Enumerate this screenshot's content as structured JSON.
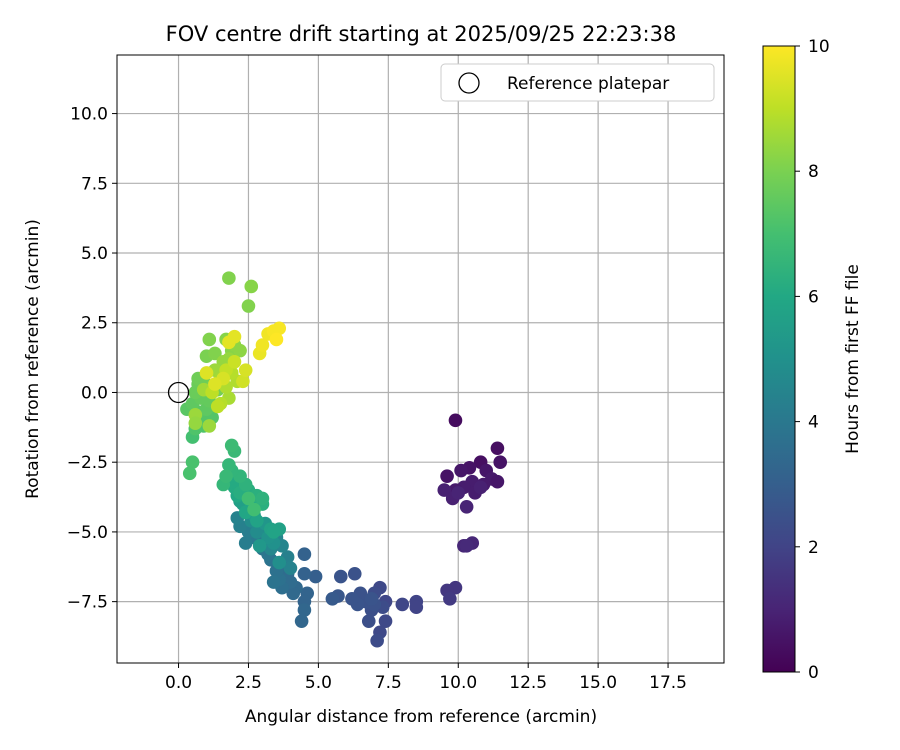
{
  "chart_data": {
    "type": "scatter",
    "title": "FOV centre drift starting at 2025/09/25 22:23:38",
    "xlabel": "Angular distance from reference (arcmin)",
    "ylabel": "Rotation from reference (arcmin)",
    "xlim": [
      -2.2,
      19.5
    ],
    "ylim": [
      -9.7,
      12.1
    ],
    "x_ticks": [
      0.0,
      2.5,
      5.0,
      7.5,
      10.0,
      12.5,
      15.0,
      17.5
    ],
    "x_tick_labels": [
      "0.0",
      "2.5",
      "5.0",
      "7.5",
      "10.0",
      "12.5",
      "15.0",
      "17.5"
    ],
    "y_ticks": [
      -7.5,
      -5.0,
      -2.5,
      0.0,
      2.5,
      5.0,
      7.5,
      10.0
    ],
    "y_tick_labels": [
      "−7.5",
      "−5.0",
      "−2.5",
      "0.0",
      "2.5",
      "5.0",
      "7.5",
      "10.0"
    ],
    "grid": true,
    "legend": {
      "position": "top-right",
      "entries": [
        "Reference platepar"
      ]
    },
    "reference_point": {
      "x": 0.0,
      "y": 0.0,
      "label": "Reference platepar"
    },
    "colorbar": {
      "label": "Hours from first FF file",
      "min": 0,
      "max": 10,
      "ticks": [
        0,
        2,
        4,
        6,
        8,
        10
      ],
      "tick_labels": [
        "0",
        "2",
        "4",
        "6",
        "8",
        "10"
      ],
      "colormap": "viridis"
    },
    "points": [
      {
        "x": 9.9,
        "y": -1.0,
        "h": 0.3
      },
      {
        "x": 11.4,
        "y": -2.0,
        "h": 0.4
      },
      {
        "x": 11.5,
        "y": -2.5,
        "h": 0.5
      },
      {
        "x": 10.8,
        "y": -2.5,
        "h": 0.4
      },
      {
        "x": 10.4,
        "y": -2.7,
        "h": 0.5
      },
      {
        "x": 10.1,
        "y": -2.8,
        "h": 0.6
      },
      {
        "x": 9.6,
        "y": -3.0,
        "h": 0.5
      },
      {
        "x": 11.0,
        "y": -2.8,
        "h": 0.6
      },
      {
        "x": 11.2,
        "y": -3.1,
        "h": 0.7
      },
      {
        "x": 11.4,
        "y": -3.2,
        "h": 0.6
      },
      {
        "x": 10.9,
        "y": -3.3,
        "h": 0.7
      },
      {
        "x": 10.5,
        "y": -3.2,
        "h": 0.8
      },
      {
        "x": 10.2,
        "y": -3.4,
        "h": 0.8
      },
      {
        "x": 9.9,
        "y": -3.5,
        "h": 0.7
      },
      {
        "x": 9.5,
        "y": -3.5,
        "h": 0.9
      },
      {
        "x": 9.8,
        "y": -3.8,
        "h": 0.9
      },
      {
        "x": 10.6,
        "y": -3.6,
        "h": 0.8
      },
      {
        "x": 10.8,
        "y": -3.4,
        "h": 0.9
      },
      {
        "x": 10.3,
        "y": -4.1,
        "h": 1.0
      },
      {
        "x": 10.0,
        "y": -3.6,
        "h": 1.0
      },
      {
        "x": 10.5,
        "y": -5.4,
        "h": 1.1
      },
      {
        "x": 10.2,
        "y": -5.5,
        "h": 1.1
      },
      {
        "x": 10.3,
        "y": -5.5,
        "h": 1.2
      },
      {
        "x": 9.9,
        "y": -7.0,
        "h": 1.6
      },
      {
        "x": 9.6,
        "y": -7.1,
        "h": 1.6
      },
      {
        "x": 9.7,
        "y": -7.4,
        "h": 1.7
      },
      {
        "x": 8.5,
        "y": -7.5,
        "h": 2.0
      },
      {
        "x": 8.5,
        "y": -7.7,
        "h": 2.0
      },
      {
        "x": 8.0,
        "y": -7.6,
        "h": 2.1
      },
      {
        "x": 7.4,
        "y": -7.5,
        "h": 2.1
      },
      {
        "x": 7.4,
        "y": -8.2,
        "h": 2.2
      },
      {
        "x": 7.2,
        "y": -8.6,
        "h": 2.2
      },
      {
        "x": 7.1,
        "y": -8.9,
        "h": 2.3
      },
      {
        "x": 7.2,
        "y": -7.0,
        "h": 2.2
      },
      {
        "x": 7.0,
        "y": -7.2,
        "h": 2.3
      },
      {
        "x": 7.3,
        "y": -7.7,
        "h": 2.3
      },
      {
        "x": 6.8,
        "y": -8.2,
        "h": 2.4
      },
      {
        "x": 6.9,
        "y": -7.8,
        "h": 2.4
      },
      {
        "x": 6.7,
        "y": -7.5,
        "h": 2.5
      },
      {
        "x": 6.5,
        "y": -7.2,
        "h": 2.5
      },
      {
        "x": 6.4,
        "y": -7.6,
        "h": 2.6
      },
      {
        "x": 6.2,
        "y": -7.4,
        "h": 2.6
      },
      {
        "x": 6.3,
        "y": -6.5,
        "h": 2.5
      },
      {
        "x": 5.8,
        "y": -6.6,
        "h": 2.6
      },
      {
        "x": 5.7,
        "y": -7.3,
        "h": 2.7
      },
      {
        "x": 5.5,
        "y": -7.4,
        "h": 2.8
      },
      {
        "x": 7.0,
        "y": -7.6,
        "h": 2.5
      },
      {
        "x": 6.9,
        "y": -7.4,
        "h": 2.6
      },
      {
        "x": 4.9,
        "y": -6.6,
        "h": 3.0
      },
      {
        "x": 4.5,
        "y": -5.8,
        "h": 3.1
      },
      {
        "x": 4.5,
        "y": -6.5,
        "h": 3.1
      },
      {
        "x": 4.6,
        "y": -7.2,
        "h": 3.2
      },
      {
        "x": 4.5,
        "y": -7.5,
        "h": 3.2
      },
      {
        "x": 4.5,
        "y": -7.8,
        "h": 3.3
      },
      {
        "x": 4.4,
        "y": -8.2,
        "h": 3.3
      },
      {
        "x": 4.2,
        "y": -7.0,
        "h": 3.4
      },
      {
        "x": 4.1,
        "y": -7.2,
        "h": 3.4
      },
      {
        "x": 4.0,
        "y": -6.8,
        "h": 3.5
      },
      {
        "x": 3.9,
        "y": -6.5,
        "h": 3.5
      },
      {
        "x": 3.8,
        "y": -6.2,
        "h": 3.6
      },
      {
        "x": 3.7,
        "y": -7.0,
        "h": 3.6
      },
      {
        "x": 3.6,
        "y": -6.7,
        "h": 3.7
      },
      {
        "x": 3.5,
        "y": -6.4,
        "h": 3.7
      },
      {
        "x": 3.4,
        "y": -6.8,
        "h": 3.8
      },
      {
        "x": 3.3,
        "y": -6.0,
        "h": 3.8
      },
      {
        "x": 3.2,
        "y": -5.8,
        "h": 3.9
      },
      {
        "x": 3.0,
        "y": -5.6,
        "h": 3.9
      },
      {
        "x": 2.9,
        "y": -5.3,
        "h": 4.0
      },
      {
        "x": 2.7,
        "y": -5.2,
        "h": 4.1
      },
      {
        "x": 2.5,
        "y": -5.0,
        "h": 4.2
      },
      {
        "x": 2.4,
        "y": -5.4,
        "h": 4.2
      },
      {
        "x": 2.2,
        "y": -4.8,
        "h": 4.3
      },
      {
        "x": 2.1,
        "y": -4.5,
        "h": 4.4
      },
      {
        "x": 3.9,
        "y": -5.9,
        "h": 4.3
      },
      {
        "x": 4.0,
        "y": -6.3,
        "h": 4.4
      },
      {
        "x": 3.7,
        "y": -5.5,
        "h": 4.5
      },
      {
        "x": 3.5,
        "y": -5.2,
        "h": 4.5
      },
      {
        "x": 3.3,
        "y": -5.6,
        "h": 4.6
      },
      {
        "x": 3.0,
        "y": -4.8,
        "h": 4.7
      },
      {
        "x": 2.8,
        "y": -5.0,
        "h": 4.8
      },
      {
        "x": 2.6,
        "y": -4.6,
        "h": 4.8
      },
      {
        "x": 3.6,
        "y": -6.1,
        "h": 4.9
      },
      {
        "x": 3.4,
        "y": -5.4,
        "h": 5.0
      },
      {
        "x": 3.2,
        "y": -5.2,
        "h": 5.1
      },
      {
        "x": 3.1,
        "y": -4.7,
        "h": 5.2
      },
      {
        "x": 2.9,
        "y": -5.5,
        "h": 5.3
      },
      {
        "x": 2.7,
        "y": -4.4,
        "h": 5.4
      },
      {
        "x": 2.5,
        "y": -4.2,
        "h": 5.4
      },
      {
        "x": 2.3,
        "y": -4.0,
        "h": 5.5
      },
      {
        "x": 2.2,
        "y": -3.9,
        "h": 5.6
      },
      {
        "x": 3.3,
        "y": -4.9,
        "h": 5.7
      },
      {
        "x": 3.6,
        "y": -4.9,
        "h": 5.7
      },
      {
        "x": 3.4,
        "y": -5.0,
        "h": 5.8
      },
      {
        "x": 2.8,
        "y": -4.6,
        "h": 5.8
      },
      {
        "x": 2.4,
        "y": -4.3,
        "h": 5.9
      },
      {
        "x": 2.6,
        "y": -4.0,
        "h": 5.9
      },
      {
        "x": 2.1,
        "y": -3.7,
        "h": 6.0
      },
      {
        "x": 2.0,
        "y": -3.4,
        "h": 6.1
      },
      {
        "x": 1.9,
        "y": -3.2,
        "h": 6.1
      },
      {
        "x": 2.2,
        "y": -3.6,
        "h": 6.2
      },
      {
        "x": 2.5,
        "y": -3.5,
        "h": 6.2
      },
      {
        "x": 2.8,
        "y": -3.7,
        "h": 6.3
      },
      {
        "x": 3.0,
        "y": -4.0,
        "h": 6.3
      },
      {
        "x": 3.0,
        "y": -3.8,
        "h": 6.4
      },
      {
        "x": 2.4,
        "y": -3.3,
        "h": 6.4
      },
      {
        "x": 2.2,
        "y": -3.0,
        "h": 6.5
      },
      {
        "x": 1.9,
        "y": -2.8,
        "h": 6.5
      },
      {
        "x": 1.8,
        "y": -2.6,
        "h": 6.6
      },
      {
        "x": 1.6,
        "y": -3.3,
        "h": 6.6
      },
      {
        "x": 1.7,
        "y": -3.0,
        "h": 6.7
      },
      {
        "x": 2.0,
        "y": -2.1,
        "h": 6.7
      },
      {
        "x": 1.9,
        "y": -1.9,
        "h": 6.8
      },
      {
        "x": 2.7,
        "y": -4.2,
        "h": 6.9
      },
      {
        "x": 2.5,
        "y": -3.8,
        "h": 6.9
      },
      {
        "x": 0.5,
        "y": -1.6,
        "h": 7.0
      },
      {
        "x": 0.5,
        "y": -2.5,
        "h": 7.1
      },
      {
        "x": 0.4,
        "y": -2.9,
        "h": 7.1
      },
      {
        "x": 0.6,
        "y": -1.3,
        "h": 7.2
      },
      {
        "x": 0.9,
        "y": -1.2,
        "h": 7.2
      },
      {
        "x": 0.8,
        "y": -0.9,
        "h": 7.3
      },
      {
        "x": 1.2,
        "y": -0.9,
        "h": 7.3
      },
      {
        "x": 0.7,
        "y": -0.7,
        "h": 7.4
      },
      {
        "x": 0.3,
        "y": -0.6,
        "h": 7.4
      },
      {
        "x": 0.5,
        "y": -0.4,
        "h": 7.5
      },
      {
        "x": 1.0,
        "y": -0.6,
        "h": 7.5
      },
      {
        "x": 1.1,
        "y": -0.3,
        "h": 7.6
      },
      {
        "x": 0.8,
        "y": -0.2,
        "h": 7.6
      },
      {
        "x": 0.6,
        "y": 0.0,
        "h": 7.7
      },
      {
        "x": 0.7,
        "y": 0.3,
        "h": 7.7
      },
      {
        "x": 0.9,
        "y": 0.4,
        "h": 7.8
      },
      {
        "x": 0.7,
        "y": 0.5,
        "h": 7.8
      },
      {
        "x": 1.2,
        "y": 0.2,
        "h": 7.9
      },
      {
        "x": 1.4,
        "y": 0.1,
        "h": 7.9
      },
      {
        "x": 1.6,
        "y": 0.3,
        "h": 8.0
      },
      {
        "x": 1.0,
        "y": 1.3,
        "h": 8.0
      },
      {
        "x": 1.3,
        "y": 1.4,
        "h": 8.1
      },
      {
        "x": 1.1,
        "y": 1.9,
        "h": 8.1
      },
      {
        "x": 1.7,
        "y": 1.9,
        "h": 8.2
      },
      {
        "x": 1.9,
        "y": 1.5,
        "h": 8.2
      },
      {
        "x": 2.0,
        "y": 1.7,
        "h": 8.3
      },
      {
        "x": 2.2,
        "y": 1.5,
        "h": 8.3
      },
      {
        "x": 2.5,
        "y": 3.1,
        "h": 8.1
      },
      {
        "x": 2.6,
        "y": 3.8,
        "h": 8.2
      },
      {
        "x": 1.8,
        "y": 4.1,
        "h": 8.1
      },
      {
        "x": 1.6,
        "y": 1.1,
        "h": 8.4
      },
      {
        "x": 1.8,
        "y": 1.2,
        "h": 8.4
      },
      {
        "x": 1.3,
        "y": 0.8,
        "h": 8.5
      },
      {
        "x": 1.5,
        "y": 0.5,
        "h": 8.6
      },
      {
        "x": 0.9,
        "y": 0.1,
        "h": 8.6
      },
      {
        "x": 0.6,
        "y": -0.8,
        "h": 8.5
      },
      {
        "x": 0.6,
        "y": -1.1,
        "h": 8.4
      },
      {
        "x": 1.1,
        "y": -1.2,
        "h": 8.5
      },
      {
        "x": 1.8,
        "y": -0.2,
        "h": 8.7
      },
      {
        "x": 1.7,
        "y": 0.2,
        "h": 8.8
      },
      {
        "x": 2.1,
        "y": 0.4,
        "h": 8.8
      },
      {
        "x": 1.9,
        "y": 0.7,
        "h": 8.9
      },
      {
        "x": 1.5,
        "y": -0.4,
        "h": 8.9
      },
      {
        "x": 1.4,
        "y": -0.5,
        "h": 9.0
      },
      {
        "x": 1.2,
        "y": 0.0,
        "h": 9.0
      },
      {
        "x": 1.7,
        "y": 0.8,
        "h": 9.1
      },
      {
        "x": 2.0,
        "y": 1.1,
        "h": 9.2
      },
      {
        "x": 2.3,
        "y": 0.4,
        "h": 9.3
      },
      {
        "x": 2.4,
        "y": 0.8,
        "h": 9.4
      },
      {
        "x": 1.6,
        "y": 0.5,
        "h": 9.4
      },
      {
        "x": 1.3,
        "y": 0.3,
        "h": 9.5
      },
      {
        "x": 1.0,
        "y": 0.7,
        "h": 9.5
      },
      {
        "x": 2.0,
        "y": 2.0,
        "h": 9.6
      },
      {
        "x": 1.8,
        "y": 1.8,
        "h": 9.6
      },
      {
        "x": 2.9,
        "y": 1.4,
        "h": 9.7
      },
      {
        "x": 3.0,
        "y": 1.7,
        "h": 9.8
      },
      {
        "x": 3.2,
        "y": 2.1,
        "h": 9.8
      },
      {
        "x": 3.4,
        "y": 2.2,
        "h": 9.9
      },
      {
        "x": 3.6,
        "y": 2.3,
        "h": 9.9
      },
      {
        "x": 3.5,
        "y": 1.9,
        "h": 10.0
      }
    ]
  }
}
